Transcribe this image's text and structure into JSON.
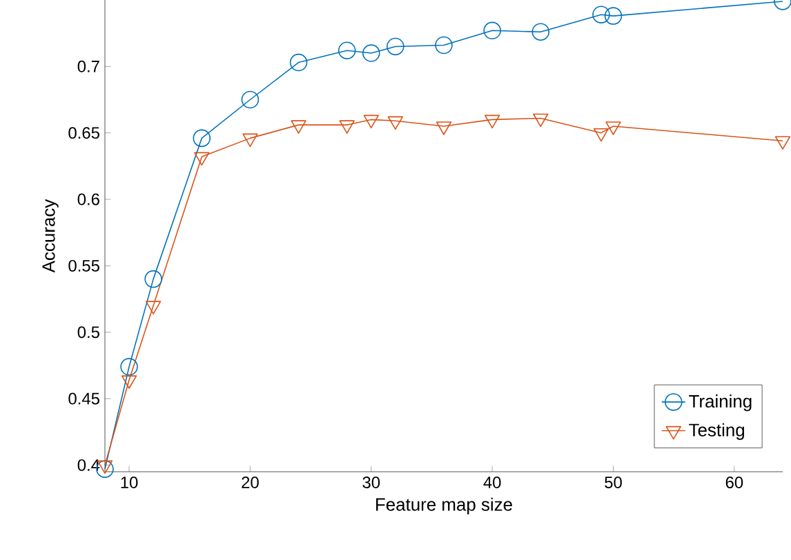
{
  "chart_data": {
    "type": "line",
    "xlabel": "Feature map size",
    "ylabel": "Accuracy",
    "xlim": [
      8,
      64
    ],
    "ylim": [
      0.395,
      0.75
    ],
    "xticks": [
      10,
      20,
      30,
      40,
      50,
      60
    ],
    "yticks": [
      0.4,
      0.45,
      0.5,
      0.55,
      0.6,
      0.65,
      0.7
    ],
    "x": [
      8,
      10,
      12,
      16,
      20,
      24,
      28,
      30,
      32,
      36,
      40,
      44,
      49,
      50,
      64
    ],
    "legend": "bottom right",
    "grid": false,
    "series": [
      {
        "name": "Training",
        "color": "#0072bd",
        "marker": "circle",
        "values": [
          0.397,
          0.474,
          0.54,
          0.646,
          0.675,
          0.703,
          0.712,
          0.71,
          0.715,
          0.716,
          0.727,
          0.726,
          0.739,
          0.738,
          0.749
        ]
      },
      {
        "name": "Testing",
        "color": "#d95319",
        "marker": "triangle",
        "values": [
          0.4,
          0.464,
          0.52,
          0.632,
          0.646,
          0.656,
          0.656,
          0.66,
          0.659,
          0.655,
          0.66,
          0.661,
          0.65,
          0.655,
          0.644
        ]
      }
    ]
  }
}
